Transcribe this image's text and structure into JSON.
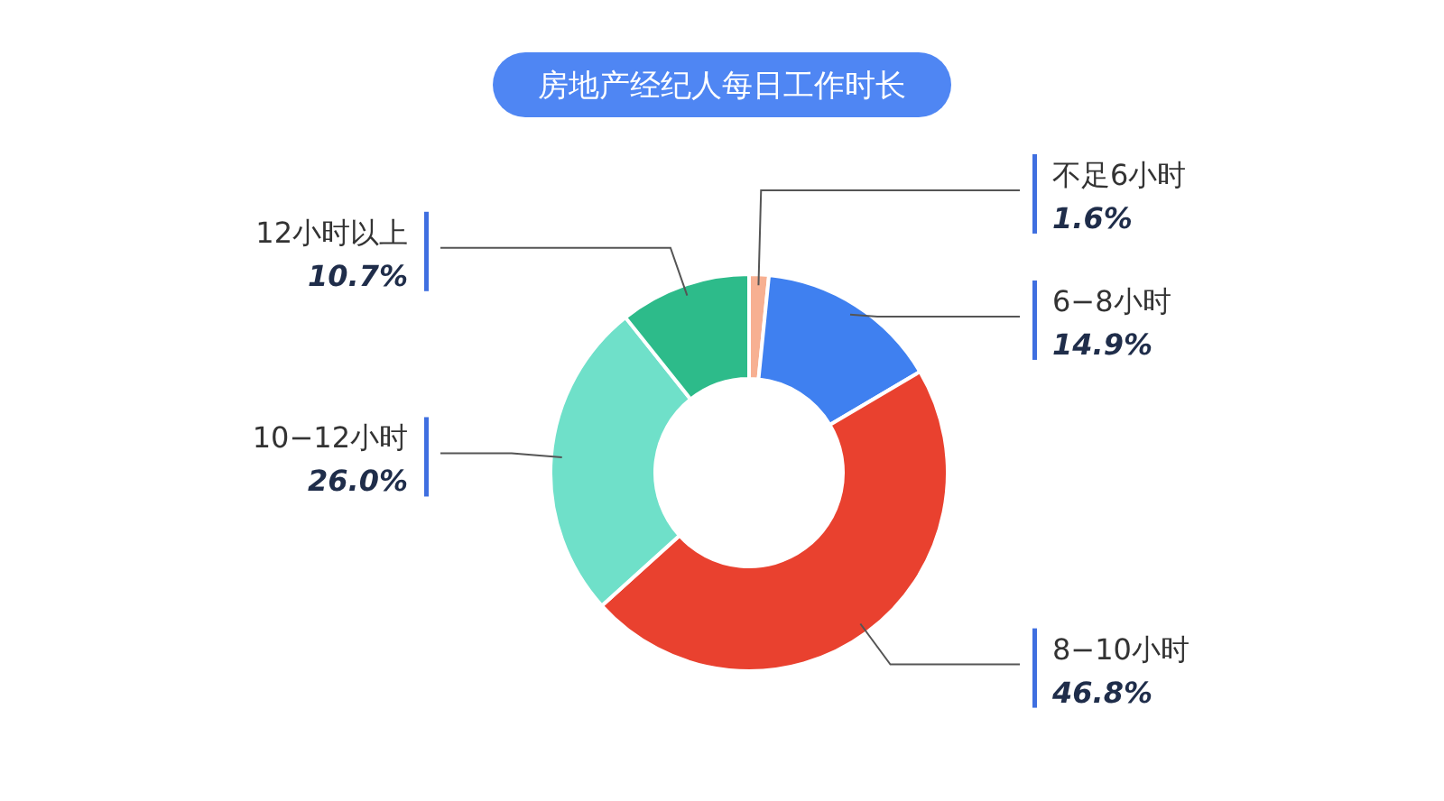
{
  "chart_data": {
    "type": "donut",
    "title": "房地产经纪人每日工作时长",
    "categories": [
      "不足6小时",
      "6−8小时",
      "8−10小时",
      "10−12小时",
      "12小时以上"
    ],
    "values": [
      1.6,
      14.9,
      46.8,
      26.0,
      10.7
    ],
    "value_labels": [
      "1.6%",
      "14.9%",
      "46.8%",
      "26.0%",
      "10.7%"
    ],
    "colors": [
      "#f7b092",
      "#3f80f0",
      "#e9412f",
      "#6fe0c9",
      "#2dbb8a"
    ]
  }
}
